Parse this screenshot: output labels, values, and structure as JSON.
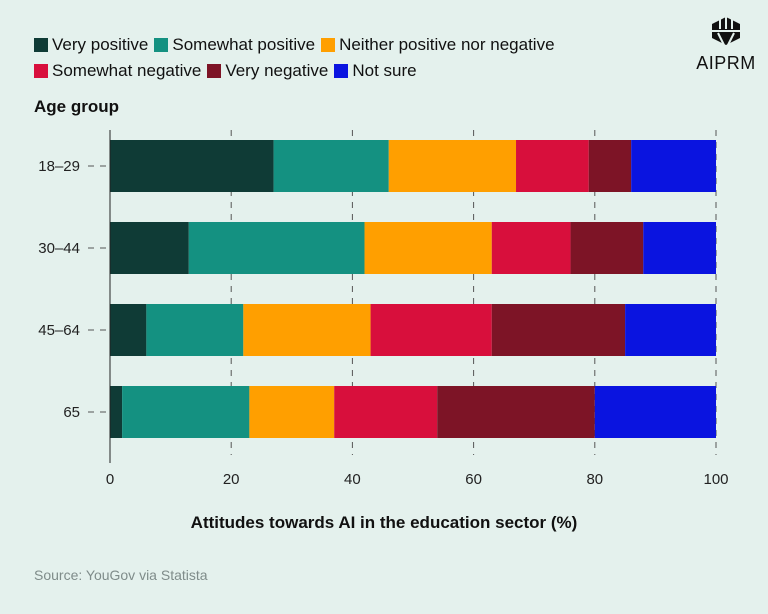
{
  "chart_data": {
    "type": "bar",
    "orientation": "horizontal",
    "stacked": true,
    "ylabel": "Age group",
    "xlabel": "Attitudes towards AI in the education sector (%)",
    "source": "Source: YouGov via Statista",
    "categories": [
      "18–29",
      "30–44",
      "45–64",
      "65"
    ],
    "xlim": [
      0,
      100
    ],
    "xticks": [
      "0",
      "20",
      "40",
      "60",
      "80",
      "100"
    ],
    "grid": true,
    "legend_position": "top-left",
    "series": [
      {
        "name": "Very positive",
        "color": "#0f3b36",
        "values": [
          27,
          13,
          6,
          2
        ]
      },
      {
        "name": "Somewhat positive",
        "color": "#149181",
        "values": [
          19,
          29,
          16,
          21
        ]
      },
      {
        "name": "Neither positive nor negative",
        "color": "#ff9f00",
        "values": [
          21,
          21,
          21,
          14
        ]
      },
      {
        "name": "Somewhat negative",
        "color": "#d80f3c",
        "values": [
          12,
          13,
          20,
          17
        ]
      },
      {
        "name": "Very negative",
        "color": "#7d1426",
        "values": [
          7,
          12,
          22,
          26
        ]
      },
      {
        "name": "Not sure",
        "color": "#0a14e0",
        "values": [
          14,
          12,
          15,
          20
        ]
      }
    ]
  },
  "logo": {
    "text": "AIPRM"
  }
}
